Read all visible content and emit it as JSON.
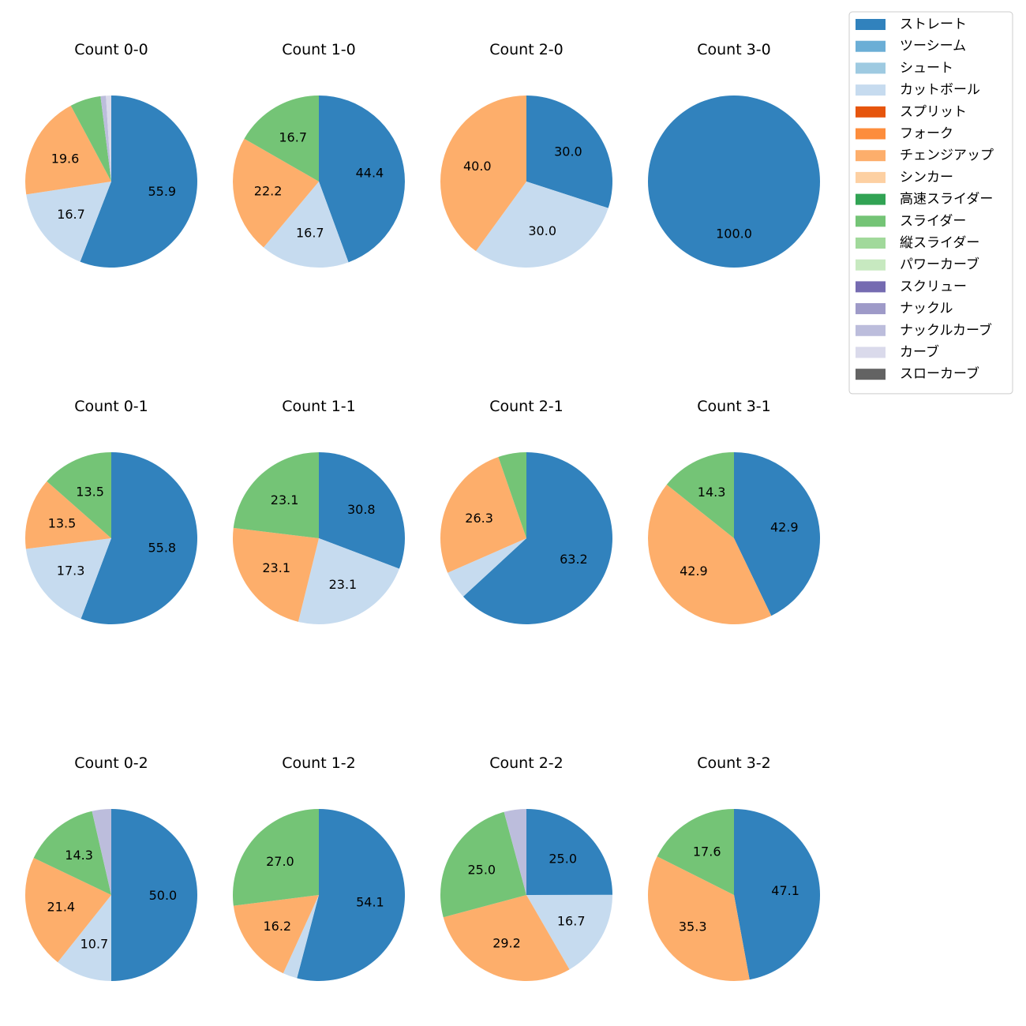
{
  "legend": {
    "items": [
      {
        "label": "ストレート",
        "color": "#3182bd"
      },
      {
        "label": "ツーシーム",
        "color": "#6baed6"
      },
      {
        "label": "シュート",
        "color": "#9ecae1"
      },
      {
        "label": "カットボール",
        "color": "#c6dbef"
      },
      {
        "label": "スプリット",
        "color": "#e6550d"
      },
      {
        "label": "フォーク",
        "color": "#fd8d3c"
      },
      {
        "label": "チェンジアップ",
        "color": "#fdae6b"
      },
      {
        "label": "シンカー",
        "color": "#fdd0a2"
      },
      {
        "label": "高速スライダー",
        "color": "#31a354"
      },
      {
        "label": "スライダー",
        "color": "#74c476"
      },
      {
        "label": "縦スライダー",
        "color": "#a1d99b"
      },
      {
        "label": "パワーカーブ",
        "color": "#c7e9c0"
      },
      {
        "label": "スクリュー",
        "color": "#756bb1"
      },
      {
        "label": "ナックル",
        "color": "#9e9ac8"
      },
      {
        "label": "ナックルカーブ",
        "color": "#bcbddc"
      },
      {
        "label": "カーブ",
        "color": "#dadaeb"
      },
      {
        "label": "スローカーブ",
        "color": "#636363"
      }
    ]
  },
  "chart_data": [
    {
      "type": "pie",
      "title": "Count 0-0",
      "slices": [
        {
          "category": "ストレート",
          "value": 55.9,
          "label": "55.9"
        },
        {
          "category": "カットボール",
          "value": 16.7,
          "label": "16.7"
        },
        {
          "category": "チェンジアップ",
          "value": 19.6,
          "label": "19.6"
        },
        {
          "category": "スライダー",
          "value": 5.8,
          "label": ""
        },
        {
          "category": "ナックルカーブ",
          "value": 1.0,
          "label": ""
        },
        {
          "category": "カーブ",
          "value": 1.0,
          "label": ""
        }
      ]
    },
    {
      "type": "pie",
      "title": "Count 1-0",
      "slices": [
        {
          "category": "ストレート",
          "value": 44.4,
          "label": "44.4"
        },
        {
          "category": "カットボール",
          "value": 16.7,
          "label": "16.7"
        },
        {
          "category": "チェンジアップ",
          "value": 22.2,
          "label": "22.2"
        },
        {
          "category": "スライダー",
          "value": 16.7,
          "label": "16.7"
        }
      ]
    },
    {
      "type": "pie",
      "title": "Count 2-0",
      "slices": [
        {
          "category": "ストレート",
          "value": 30.0,
          "label": "30.0"
        },
        {
          "category": "カットボール",
          "value": 30.0,
          "label": "30.0"
        },
        {
          "category": "チェンジアップ",
          "value": 40.0,
          "label": "40.0"
        }
      ]
    },
    {
      "type": "pie",
      "title": "Count 3-0",
      "slices": [
        {
          "category": "ストレート",
          "value": 100.0,
          "label": "100.0"
        }
      ]
    },
    {
      "type": "pie",
      "title": "Count 0-1",
      "slices": [
        {
          "category": "ストレート",
          "value": 55.8,
          "label": "55.8"
        },
        {
          "category": "カットボール",
          "value": 17.3,
          "label": "17.3"
        },
        {
          "category": "チェンジアップ",
          "value": 13.5,
          "label": "13.5"
        },
        {
          "category": "スライダー",
          "value": 13.5,
          "label": "13.5"
        }
      ]
    },
    {
      "type": "pie",
      "title": "Count 1-1",
      "slices": [
        {
          "category": "ストレート",
          "value": 30.8,
          "label": "30.8"
        },
        {
          "category": "カットボール",
          "value": 23.1,
          "label": "23.1"
        },
        {
          "category": "チェンジアップ",
          "value": 23.1,
          "label": "23.1"
        },
        {
          "category": "スライダー",
          "value": 23.1,
          "label": "23.1"
        }
      ]
    },
    {
      "type": "pie",
      "title": "Count 2-1",
      "slices": [
        {
          "category": "ストレート",
          "value": 63.2,
          "label": "63.2"
        },
        {
          "category": "カットボール",
          "value": 5.3,
          "label": ""
        },
        {
          "category": "チェンジアップ",
          "value": 26.3,
          "label": "26.3"
        },
        {
          "category": "スライダー",
          "value": 5.3,
          "label": ""
        }
      ]
    },
    {
      "type": "pie",
      "title": "Count 3-1",
      "slices": [
        {
          "category": "ストレート",
          "value": 42.9,
          "label": "42.9"
        },
        {
          "category": "チェンジアップ",
          "value": 42.9,
          "label": "42.9"
        },
        {
          "category": "スライダー",
          "value": 14.3,
          "label": "14.3"
        }
      ]
    },
    {
      "type": "pie",
      "title": "Count 0-2",
      "slices": [
        {
          "category": "ストレート",
          "value": 50.0,
          "label": "50.0"
        },
        {
          "category": "カットボール",
          "value": 10.7,
          "label": "10.7"
        },
        {
          "category": "チェンジアップ",
          "value": 21.4,
          "label": "21.4"
        },
        {
          "category": "スライダー",
          "value": 14.3,
          "label": "14.3"
        },
        {
          "category": "ナックルカーブ",
          "value": 3.6,
          "label": ""
        }
      ]
    },
    {
      "type": "pie",
      "title": "Count 1-2",
      "slices": [
        {
          "category": "ストレート",
          "value": 54.1,
          "label": "54.1"
        },
        {
          "category": "カットボール",
          "value": 2.7,
          "label": ""
        },
        {
          "category": "チェンジアップ",
          "value": 16.2,
          "label": "16.2"
        },
        {
          "category": "スライダー",
          "value": 27.0,
          "label": "27.0"
        }
      ]
    },
    {
      "type": "pie",
      "title": "Count 2-2",
      "slices": [
        {
          "category": "ストレート",
          "value": 25.0,
          "label": "25.0"
        },
        {
          "category": "カットボール",
          "value": 16.7,
          "label": "16.7"
        },
        {
          "category": "チェンジアップ",
          "value": 29.2,
          "label": "29.2"
        },
        {
          "category": "スライダー",
          "value": 25.0,
          "label": "25.0"
        },
        {
          "category": "ナックルカーブ",
          "value": 4.2,
          "label": ""
        }
      ]
    },
    {
      "type": "pie",
      "title": "Count 3-2",
      "slices": [
        {
          "category": "ストレート",
          "value": 47.1,
          "label": "47.1"
        },
        {
          "category": "チェンジアップ",
          "value": 35.3,
          "label": "35.3"
        },
        {
          "category": "スライダー",
          "value": 17.6,
          "label": "17.6"
        }
      ]
    }
  ]
}
